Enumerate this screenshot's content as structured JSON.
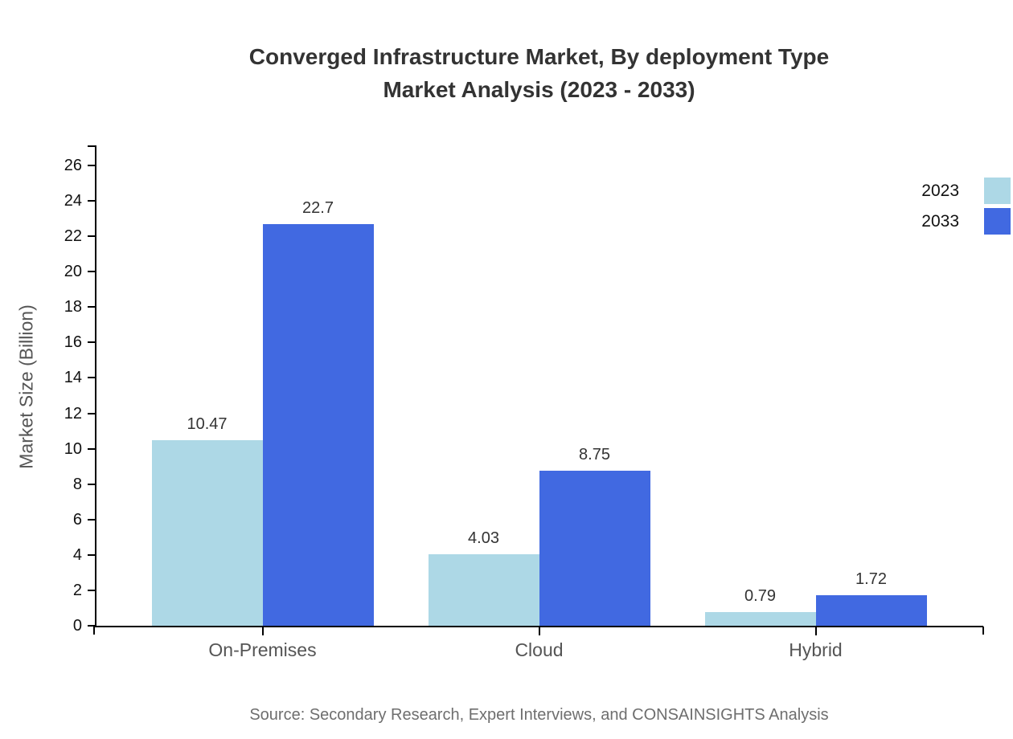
{
  "header": {
    "title_line1": "Converged Infrastructure Market, By deployment Type",
    "title_line2": "Market Analysis (2023 - 2033)"
  },
  "chart_data": {
    "type": "bar",
    "title": "Converged Infrastructure Market, By deployment Type Market Analysis (2023 - 2033)",
    "categories": [
      "On-Premises",
      "Cloud",
      "Hybrid"
    ],
    "series": [
      {
        "name": "2023",
        "color": "#ADD8E6",
        "values": [
          10.47,
          4.03,
          0.79
        ]
      },
      {
        "name": "2033",
        "color": "#4169E1",
        "values": [
          22.7,
          8.75,
          1.72
        ]
      }
    ],
    "value_labels": {
      "2023": [
        "10.47",
        "4.03",
        "0.79"
      ],
      "2033": [
        "22.7",
        "8.75",
        "1.72"
      ]
    },
    "xlabel": "",
    "ylabel": "Market Size (Billion)",
    "ylim": [
      0,
      26
    ],
    "ytick_step": 2,
    "yticks": [
      0,
      2,
      4,
      6,
      8,
      10,
      12,
      14,
      16,
      18,
      20,
      22,
      24,
      26
    ],
    "grid": false,
    "legend_position": "top-right",
    "axis_color": "#000000",
    "text_colors": {
      "title": "#333333",
      "tick_labels": "#111111",
      "category_labels": "#555555",
      "value_labels": "#333333",
      "source": "#6e6e6e"
    }
  },
  "legend": {
    "items": [
      {
        "label": "2023",
        "color": "#ADD8E6"
      },
      {
        "label": "2033",
        "color": "#4169E1"
      }
    ]
  },
  "source": {
    "text": "Source: Secondary Research, Expert Interviews, and CONSAINSIGHTS Analysis"
  }
}
